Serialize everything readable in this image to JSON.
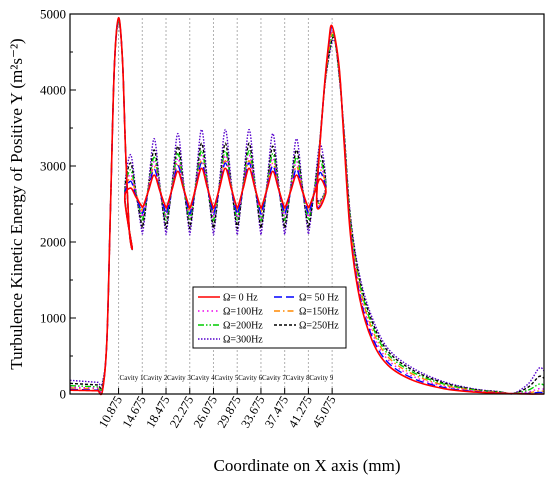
{
  "chart_data": {
    "type": "line",
    "title": "",
    "xlabel": "Coordinate on X axis (mm)",
    "ylabel": "Turbulence Kinetic Energy of Positive Y (m²s⁻²)",
    "ylim": [
      0,
      5000
    ],
    "xlim": [
      3.1,
      79.0
    ],
    "yticks": [
      0,
      1000,
      2000,
      3000,
      4000,
      5000
    ],
    "xticks": [
      10.875,
      14.675,
      18.475,
      22.275,
      26.075,
      29.875,
      33.675,
      37.475,
      41.275,
      45.075
    ],
    "xtick_labels": [
      "10.875",
      "14.675",
      "18.475",
      "22.275",
      "26.075",
      "29.875",
      "33.675",
      "37.475",
      "41.275",
      "45.075"
    ],
    "cavity_labels": [
      "Cavity 1",
      "Cavity 2",
      "Cavity 3",
      "Cavity 4",
      "Cavity 5",
      "Cavity 6",
      "Cavity 7",
      "Cavity 8",
      "Cavity 9"
    ],
    "legend_position": "center-left",
    "grid": false,
    "series": [
      {
        "name": "Ω=   0 Hz",
        "color": "#ff0000",
        "dash": "solid",
        "base": 50,
        "peak_mod": 2770,
        "peak_mid": 2970,
        "trough": 2470,
        "end": 0
      },
      {
        "name": "Ω= 50 Hz",
        "color": "#0000ff",
        "dash": "longdash",
        "base": 60,
        "peak_mod": 2860,
        "peak_mid": 3040,
        "trough": 2400,
        "end": 20
      },
      {
        "name": "Ω=100Hz",
        "color": "#ee00ee",
        "dash": "dot",
        "base": 90,
        "peak_mod": 2950,
        "peak_mid": 3140,
        "trough": 2360,
        "end": 70
      },
      {
        "name": "Ω=150Hz",
        "color": "#ff8800",
        "dash": "dashdot",
        "base": 80,
        "peak_mod": 2900,
        "peak_mid": 3070,
        "trough": 2430,
        "end": 40
      },
      {
        "name": "Ω=200Hz",
        "color": "#00cc00",
        "dash": "dashdotdot",
        "base": 110,
        "peak_mod": 3010,
        "peak_mid": 3200,
        "trough": 2330,
        "end": 130
      },
      {
        "name": "Ω=250Hz",
        "color": "#000000",
        "dash": "shortdash",
        "base": 140,
        "peak_mod": 3100,
        "peak_mid": 3300,
        "trough": 2240,
        "end": 230
      },
      {
        "name": "Ω=300Hz",
        "color": "#5500cc",
        "dash": "shortdot",
        "base": 180,
        "peak_mod": 3210,
        "peak_mid": 3480,
        "trough": 2170,
        "end": 340
      }
    ],
    "features": {
      "first_peak": {
        "x": 10.875,
        "y": 4950
      },
      "first_dip": {
        "x": 12.6,
        "y": 1930
      },
      "last_peak": {
        "x": 45.075,
        "y": 4840
      },
      "x_rise_start": 8.3,
      "x_decay_end": 74.0
    }
  }
}
